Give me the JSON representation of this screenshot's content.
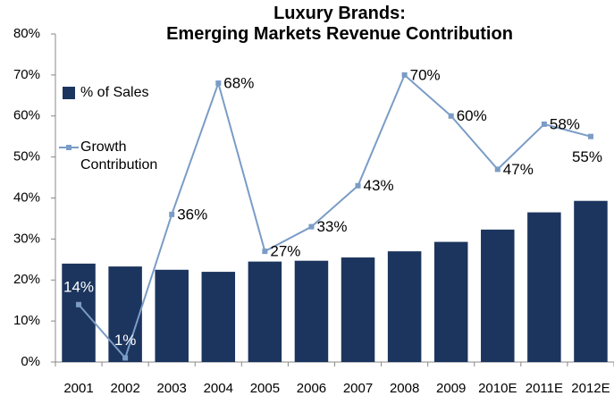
{
  "chart_data": {
    "type": "bar-line",
    "title": "Luxury Brands:\nEmerging Markets Revenue Contribution",
    "categories": [
      "2001",
      "2002",
      "2003",
      "2004",
      "2005",
      "2006",
      "2007",
      "2008",
      "2009",
      "2010E",
      "2011E",
      "2012E"
    ],
    "series": [
      {
        "name": "% of Sales",
        "type": "bar",
        "color": "#1c355e",
        "values": [
          24,
          23.3,
          22.5,
          22,
          24.5,
          24.7,
          25.5,
          27,
          29.3,
          32.3,
          36.5,
          39.3
        ]
      },
      {
        "name": "Growth Contribution",
        "type": "line",
        "color": "#7a9cc6",
        "values": [
          14,
          1,
          36,
          68,
          27,
          33,
          43,
          70,
          60,
          47,
          58,
          55
        ],
        "value_labels": [
          "14%",
          "1%",
          "36%",
          "68%",
          "27%",
          "33%",
          "43%",
          "70%",
          "60%",
          "47%",
          "58%",
          "55%"
        ]
      }
    ],
    "ylim": [
      0,
      80
    ],
    "yticks": [
      {
        "value": 0,
        "label": "0%"
      },
      {
        "value": 10,
        "label": "10%"
      },
      {
        "value": 20,
        "label": "20%"
      },
      {
        "value": 30,
        "label": "30%"
      },
      {
        "value": 40,
        "label": "40%"
      },
      {
        "value": 50,
        "label": "50%"
      },
      {
        "value": 60,
        "label": "60%"
      },
      {
        "value": 70,
        "label": "70%"
      },
      {
        "value": 80,
        "label": "80%"
      }
    ],
    "grid": false,
    "legend": "upper left"
  }
}
